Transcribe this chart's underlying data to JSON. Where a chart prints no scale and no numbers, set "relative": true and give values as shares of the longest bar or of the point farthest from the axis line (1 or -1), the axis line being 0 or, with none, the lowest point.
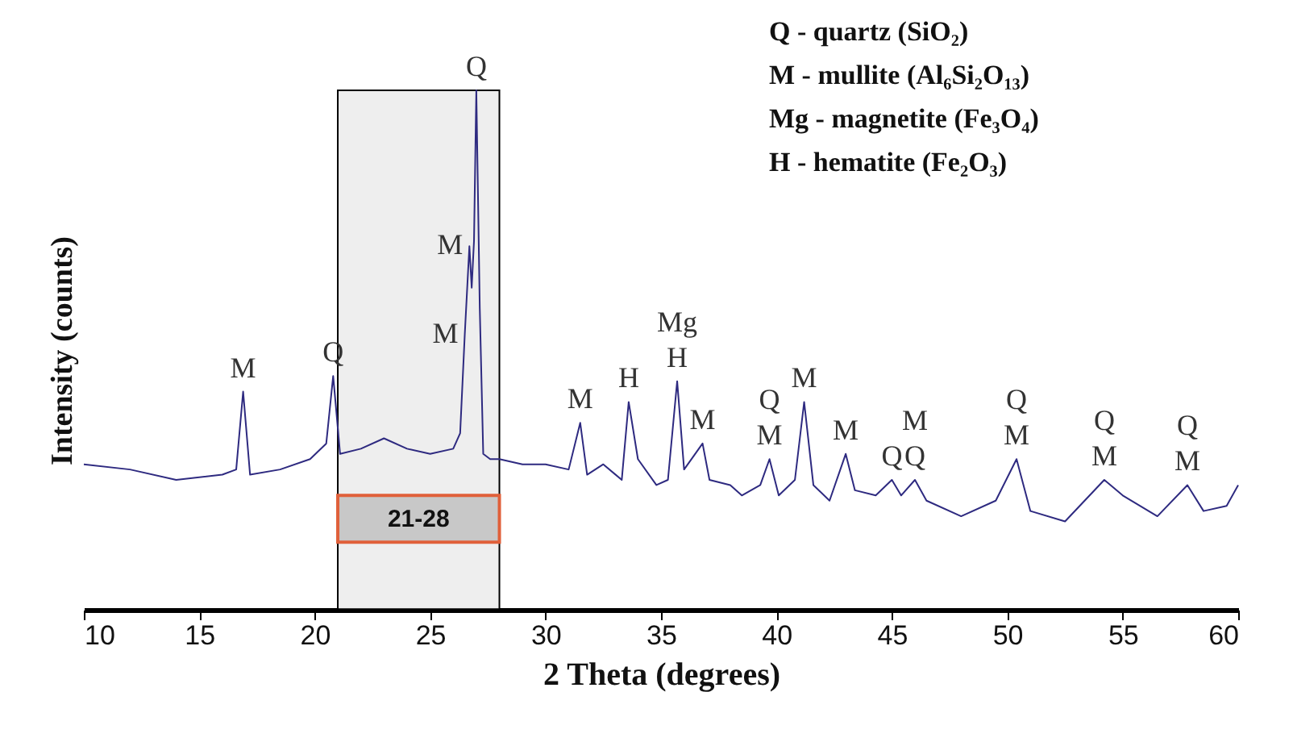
{
  "chart_data": {
    "type": "line",
    "relative": true,
    "xlabel": "2 Theta (degrees)",
    "ylabel": "Intensity (counts)",
    "xlim": [
      10,
      60
    ],
    "xticks": [
      10,
      15,
      20,
      25,
      30,
      35,
      40,
      45,
      50,
      55,
      60
    ],
    "grid": false,
    "legend": false,
    "marker": "none",
    "line_style": "solid",
    "x": [
      10,
      12,
      14,
      16,
      16.6,
      16.9,
      17.2,
      18.5,
      19.8,
      20.5,
      20.8,
      21.1,
      22,
      23,
      24,
      25,
      26,
      26.3,
      26.5,
      26.7,
      26.8,
      26.9,
      27.0,
      27.15,
      27.3,
      27.6,
      28,
      29,
      30,
      31,
      31.5,
      31.8,
      32.5,
      33.3,
      33.6,
      34.0,
      34.8,
      35.3,
      35.7,
      36.0,
      36.8,
      37.1,
      38.0,
      38.5,
      39.3,
      39.7,
      40.1,
      40.8,
      41.2,
      41.6,
      42.3,
      43.0,
      43.4,
      44.3,
      45.0,
      45.4,
      46.0,
      46.5,
      48.0,
      49.5,
      50.4,
      51.0,
      52.5,
      54.2,
      55.0,
      56.5,
      57.8,
      58.5,
      59.5,
      60.0
    ],
    "series": [
      {
        "color": "#2e2a80",
        "values": [
          0.28,
          0.27,
          0.25,
          0.26,
          0.27,
          0.42,
          0.26,
          0.27,
          0.29,
          0.32,
          0.45,
          0.3,
          0.31,
          0.33,
          0.31,
          0.3,
          0.31,
          0.34,
          0.53,
          0.7,
          0.62,
          0.71,
          1,
          0.58,
          0.3,
          0.29,
          0.29,
          0.28,
          0.28,
          0.27,
          0.36,
          0.26,
          0.28,
          0.25,
          0.4,
          0.29,
          0.24,
          0.25,
          0.44,
          0.27,
          0.32,
          0.25,
          0.24,
          0.22,
          0.24,
          0.29,
          0.22,
          0.25,
          0.4,
          0.24,
          0.21,
          0.3,
          0.23,
          0.22,
          0.25,
          0.22,
          0.25,
          0.21,
          0.18,
          0.21,
          0.29,
          0.19,
          0.17,
          0.25,
          0.22,
          0.18,
          0.24,
          0.19,
          0.2,
          0.24
        ]
      }
    ],
    "bands": [
      {
        "axis": "x",
        "from": 21,
        "to": 28,
        "label": "21-28",
        "color": "#c8c8c8"
      }
    ],
    "annotations": [
      "Q - quartz (SiO₂)",
      "M - mullite (Al₆Si₂O₁₃)",
      "Mg - magnetite (Fe₃O₄)",
      "H - hematite (Fe₂O₃)",
      {
        "text": "M",
        "x": 16.9,
        "y": 0.42
      },
      {
        "text": "Q",
        "x": 20.8,
        "y": 0.45
      },
      {
        "text": "M",
        "x": 26.5,
        "y": 0.53
      },
      {
        "text": "M",
        "x": 26.7,
        "y": 0.7
      },
      {
        "text": "Q",
        "x": 27.0,
        "y": 1
      },
      {
        "text": "M",
        "x": 31.5,
        "y": 0.36
      },
      {
        "text": "H",
        "x": 33.6,
        "y": 0.4
      },
      {
        "text": "H",
        "x": 35.7,
        "y": 0.44
      },
      {
        "text": "Mg",
        "x": 35.7,
        "y": 0.44
      },
      {
        "text": "M",
        "x": 36.8,
        "y": 0.32
      },
      {
        "text": "M",
        "x": 39.7,
        "y": 0.29
      },
      {
        "text": "Q",
        "x": 39.7,
        "y": 0.29
      },
      {
        "text": "M",
        "x": 41.2,
        "y": 0.4
      },
      {
        "text": "M",
        "x": 43.0,
        "y": 0.3
      },
      {
        "text": "Q",
        "x": 45.0,
        "y": 0.25
      },
      {
        "text": "Q",
        "x": 46.0,
        "y": 0.25
      },
      {
        "text": "M",
        "x": 46.0,
        "y": 0.25
      },
      {
        "text": "M",
        "x": 50.4,
        "y": 0.29
      },
      {
        "text": "Q",
        "x": 50.4,
        "y": 0.29
      },
      {
        "text": "M",
        "x": 54.2,
        "y": 0.25
      },
      {
        "text": "Q",
        "x": 54.2,
        "y": 0.25
      },
      {
        "text": "M",
        "x": 57.8,
        "y": 0.24
      },
      {
        "text": "Q",
        "x": 57.8,
        "y": 0.24
      }
    ]
  }
}
